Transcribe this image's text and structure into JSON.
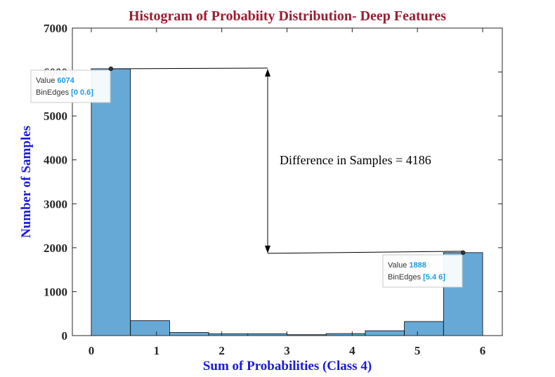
{
  "chart_data": {
    "type": "bar",
    "title": "Histogram of Probabiity Distribution- Deep Features",
    "xlabel": "Sum of Probabilities (Class 4)",
    "ylabel": "Number of Samples",
    "xlim": [
      0,
      6
    ],
    "ylim": [
      0,
      7000
    ],
    "xticks": [
      "0",
      "1",
      "2",
      "3",
      "4",
      "5",
      "6"
    ],
    "yticks": [
      "0",
      "1000",
      "2000",
      "3000",
      "4000",
      "5000",
      "6000",
      "7000"
    ],
    "grid": false,
    "bar_color": "#67a9d6",
    "bin_edges": [
      0,
      0.6,
      1.2,
      1.8,
      2.4,
      3.0,
      3.6,
      4.2,
      4.8,
      5.4,
      6.0
    ],
    "values": [
      6074,
      340,
      70,
      40,
      40,
      20,
      45,
      110,
      320,
      1888
    ],
    "annotation": {
      "text": "Difference in Samples = 4186",
      "top_value": 6074,
      "bottom_value": 1888
    },
    "datatips": [
      {
        "value_label": "Value",
        "value": "6074",
        "edges_label": "BinEdges",
        "edges": "[0 0.6]",
        "bin": 0
      },
      {
        "value_label": "Value",
        "value": "1888",
        "edges_label": "BinEdges",
        "edges": "[5.4 6]",
        "bin": 9
      }
    ]
  }
}
